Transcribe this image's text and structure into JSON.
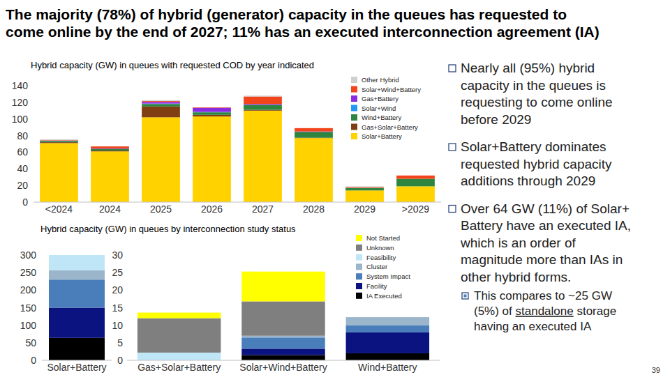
{
  "slide": {
    "title": [
      "The majority (78%) of hybrid (generator) capacity in the queues has requested to",
      "come online by the end of 2027; 11% has an executed interconnection agreement (IA)"
    ],
    "bullets": [
      [
        "Nearly all (95%) hybrid",
        "capacity in the queues is",
        "requesting to come online",
        "before 2029"
      ],
      [
        "Solar+Battery dominates",
        "requested hybrid capacity",
        "additions through 2029"
      ],
      [
        "Over 64 GW (11%) of Solar+",
        "Battery have an executed IA,",
        "which is an order of",
        "magnitude more than IAs in",
        "other hybrid forms."
      ]
    ],
    "sub_bullet": [
      "This compares to ~25 GW",
      [
        {
          "text": "(5%) of "
        },
        {
          "text": "standalone",
          "underline": true
        },
        {
          "text": " storage"
        }
      ],
      "having an executed IA"
    ],
    "page_number": "39"
  },
  "chart_data": [
    {
      "type": "bar",
      "stacked": true,
      "title": "Hybrid capacity (GW) in queues with requested COD by year indicated",
      "categories": [
        "<2024",
        "2024",
        "2025",
        "2026",
        "2027",
        "2028",
        "2029",
        ">2029"
      ],
      "series": [
        {
          "name": "Solar+Battery",
          "color": "#FFD200",
          "values": [
            71,
            61,
            102,
            103,
            110,
            77,
            14,
            19
          ]
        },
        {
          "name": "Gas+Solar+Battery",
          "color": "#7F3F12",
          "values": [
            1,
            1,
            13,
            2,
            1,
            0.5,
            0,
            0
          ]
        },
        {
          "name": "Wind+Battery",
          "color": "#2E8540",
          "values": [
            1.5,
            2,
            3,
            3,
            6,
            7,
            3,
            9
          ]
        },
        {
          "name": "Solar+Wind",
          "color": "#2196F3",
          "values": [
            0.3,
            0,
            0.5,
            0.5,
            0,
            0,
            0,
            0
          ]
        },
        {
          "name": "Gas+Battery",
          "color": "#8A2BE2",
          "values": [
            0.2,
            0.5,
            2,
            5,
            1,
            0.5,
            0,
            0
          ]
        },
        {
          "name": "Solar+Wind+Battery",
          "color": "#F2451C",
          "values": [
            0.5,
            2.5,
            1,
            0.5,
            9,
            4,
            1,
            4
          ]
        },
        {
          "name": "Other Hybrid",
          "color": "#CFCFCF",
          "values": [
            1,
            0,
            1,
            0,
            1,
            0,
            1,
            0
          ]
        }
      ],
      "ylim": [
        0,
        140
      ],
      "yticks": [
        0,
        20,
        40,
        60,
        80,
        100,
        120,
        140
      ],
      "grid": false,
      "legend": "upper right"
    },
    {
      "type": "bar",
      "stacked": true,
      "title": "Hybrid capacity (GW) in queues by interconnection study status",
      "categories": [
        "Solar+Battery"
      ],
      "series": [
        {
          "name": "IA Executed",
          "color": "#000000",
          "values": [
            64
          ]
        },
        {
          "name": "Facility",
          "color": "#0A137F",
          "values": [
            86
          ]
        },
        {
          "name": "System Impact",
          "color": "#4A7EBB",
          "values": [
            80
          ]
        },
        {
          "name": "Cluster",
          "color": "#9BB5CB",
          "values": [
            27
          ]
        },
        {
          "name": "Feasibility",
          "color": "#BFE6F7",
          "values": [
            43
          ]
        },
        {
          "name": "Unknown",
          "color": "#7F7F7F",
          "values": [
            0
          ]
        },
        {
          "name": "Not Started",
          "color": "#FFFF00",
          "values": [
            0
          ]
        }
      ],
      "ylim": [
        0,
        300
      ],
      "yticks": [
        0,
        50,
        100,
        150,
        200,
        250,
        300
      ],
      "grid": false
    },
    {
      "type": "bar",
      "stacked": true,
      "categories": [
        "Gas+Solar+Battery",
        "Solar+Wind+Battery",
        "Wind+Battery"
      ],
      "series": [
        {
          "name": "IA Executed",
          "color": "#000000",
          "values": [
            0,
            1.5,
            2
          ]
        },
        {
          "name": "Facility",
          "color": "#0A137F",
          "values": [
            0,
            1.8,
            6
          ]
        },
        {
          "name": "System Impact",
          "color": "#4A7EBB",
          "values": [
            0,
            3.2,
            2
          ]
        },
        {
          "name": "Cluster",
          "color": "#9BB5CB",
          "values": [
            0,
            0.5,
            2.3
          ]
        },
        {
          "name": "Feasibility",
          "color": "#BFE6F7",
          "values": [
            2.2,
            0,
            0
          ]
        },
        {
          "name": "Unknown",
          "color": "#7F7F7F",
          "values": [
            9.8,
            9.8,
            0
          ]
        },
        {
          "name": "Not Started",
          "color": "#FFFF00",
          "values": [
            1.6,
            8.5,
            0
          ]
        }
      ],
      "ylim": [
        0,
        30
      ],
      "yticks": [
        0,
        5,
        10,
        15,
        20,
        25,
        30
      ],
      "grid": false,
      "legend": "upper right"
    }
  ]
}
